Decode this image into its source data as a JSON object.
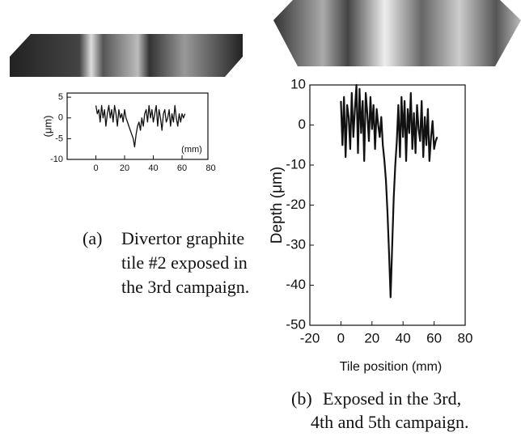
{
  "chart_data": [
    {
      "type": "line",
      "ylabel": "(μm)",
      "annotation": "(mm)",
      "xlim": [
        -20,
        78
      ],
      "xticks": [
        0,
        20,
        40,
        60,
        80
      ],
      "ylim": [
        -10,
        6
      ],
      "yticks": [
        5,
        0,
        -5,
        -10
      ],
      "color": "#111111",
      "x": [
        0,
        1,
        2,
        3,
        4,
        5,
        6,
        7,
        8,
        9,
        10,
        11,
        12,
        13,
        14,
        15,
        16,
        17,
        18,
        19,
        20,
        21,
        22,
        23,
        24,
        25,
        26,
        27,
        28,
        29,
        30,
        31,
        32,
        33,
        34,
        35,
        36,
        37,
        38,
        39,
        40,
        41,
        42,
        43,
        44,
        45,
        46,
        47,
        48,
        49,
        50,
        51,
        52,
        53,
        54,
        55,
        56,
        57,
        58,
        59,
        60,
        61,
        62
      ],
      "values": [
        3,
        1,
        2,
        -1,
        3,
        0,
        2,
        -2,
        1,
        3,
        0,
        2,
        -1,
        3,
        1,
        -2,
        2,
        0,
        1,
        -1,
        2,
        0,
        -1,
        -2,
        -3,
        -4,
        -5,
        -7,
        -4,
        -2,
        -1,
        -3,
        0,
        -2,
        1,
        2,
        -1,
        3,
        0,
        2,
        -1,
        1,
        3,
        -2,
        2,
        0,
        -3,
        1,
        2,
        -1,
        0,
        2,
        -2,
        1,
        -1,
        3,
        0,
        -2,
        1,
        -1,
        1,
        0,
        1
      ]
    },
    {
      "type": "line",
      "ylabel": "Depth (μm)",
      "xlabel": "Tile position (mm)",
      "xlim": [
        -20,
        80
      ],
      "xticks": [
        -20,
        0,
        20,
        40,
        60,
        80
      ],
      "ylim": [
        -50,
        10
      ],
      "yticks": [
        10,
        0,
        -10,
        -20,
        -30,
        -40,
        -50
      ],
      "color": "#111111",
      "x": [
        0,
        1,
        2,
        3,
        4,
        5,
        6,
        7,
        8,
        9,
        10,
        11,
        12,
        13,
        14,
        15,
        16,
        17,
        18,
        19,
        20,
        21,
        22,
        23,
        24,
        25,
        26,
        27,
        28,
        29,
        30,
        31,
        32,
        33,
        34,
        35,
        36,
        37,
        38,
        39,
        40,
        41,
        42,
        43,
        44,
        45,
        46,
        47,
        48,
        49,
        50,
        51,
        52,
        53,
        54,
        55,
        56,
        57,
        58,
        59,
        60,
        61,
        62
      ],
      "values": [
        6,
        -5,
        7,
        -8,
        5,
        2,
        -6,
        8,
        -3,
        4,
        10,
        -7,
        9,
        -2,
        6,
        -9,
        8,
        3,
        -4,
        7,
        -1,
        5,
        -6,
        4,
        0,
        -3,
        2,
        -5,
        -9,
        -14,
        -22,
        -32,
        -43,
        -30,
        -18,
        -10,
        -4,
        5,
        -8,
        7,
        -3,
        6,
        -9,
        4,
        -2,
        8,
        -6,
        3,
        -7,
        5,
        -1,
        -4,
        6,
        -8,
        2,
        -5,
        4,
        -9,
        -3,
        1,
        -6,
        -4,
        -3
      ]
    }
  ],
  "captions": {
    "a": {
      "label": "(a)",
      "lines": [
        "Divertor graphite",
        "tile #2 exposed in",
        "the 3rd campaign."
      ]
    },
    "b": {
      "label": "(b)",
      "lines": [
        "Exposed in the 3rd,",
        "4th and 5th campaign."
      ]
    }
  }
}
